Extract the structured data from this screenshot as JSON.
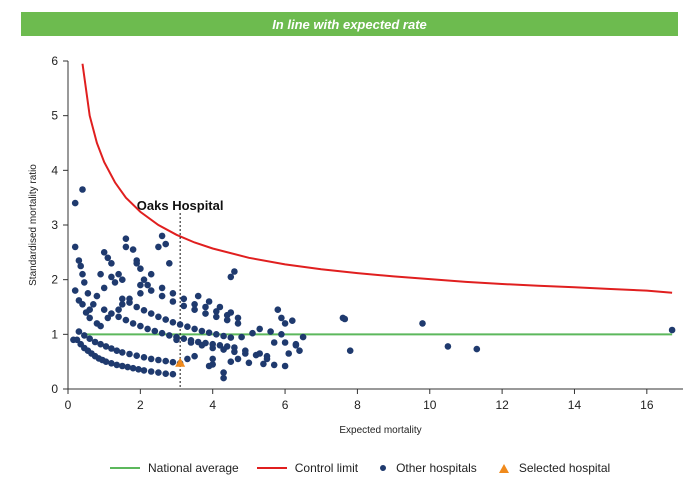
{
  "banner": {
    "text": "In line with expected rate",
    "color": "#6dbb4f"
  },
  "legend": {
    "national_average": "National average",
    "control_limit": "Control limit",
    "other_hospitals": "Other hospitals",
    "selected_hospital": "Selected hospital"
  },
  "colors": {
    "national": "#5cb85c",
    "control": "#e01f1f",
    "other": "#1f3a6e",
    "selected": "#f08a1c"
  },
  "chart_data": {
    "type": "scatter",
    "xlabel": "Expected mortality",
    "ylabel": "Standardised mortality ratio",
    "xlim": [
      0,
      17
    ],
    "ylim": [
      0,
      6
    ],
    "xticks": [
      0,
      2,
      4,
      6,
      8,
      10,
      12,
      14,
      16
    ],
    "yticks": [
      0,
      1,
      2,
      3,
      4,
      5,
      6
    ],
    "annotation": {
      "label": "Oaks Hospital",
      "x": 3.1
    },
    "national_average": {
      "x": [
        0.4,
        16.7
      ],
      "y": [
        1.0,
        1.0
      ]
    },
    "control_limit": {
      "x": [
        0.4,
        0.6,
        0.8,
        1.0,
        1.3,
        1.6,
        2.0,
        2.5,
        3.0,
        3.5,
        4.0,
        5.0,
        6.0,
        7.0,
        8.0,
        9.0,
        10.0,
        11.0,
        12.0,
        13.0,
        14.0,
        15.0,
        16.0,
        16.7
      ],
      "y": [
        5.95,
        5.0,
        4.5,
        4.15,
        3.78,
        3.5,
        3.24,
        3.0,
        2.82,
        2.68,
        2.57,
        2.4,
        2.28,
        2.19,
        2.12,
        2.06,
        2.01,
        1.96,
        1.92,
        1.89,
        1.86,
        1.83,
        1.8,
        1.76
      ]
    },
    "series": [
      {
        "name": "Other hospitals",
        "x": [
          0.2,
          0.4,
          0.2,
          0.3,
          0.35,
          0.4,
          0.45,
          0.55,
          0.3,
          0.2,
          0.4,
          0.5,
          0.6,
          0.8,
          0.15,
          1.0,
          1.1,
          1.2,
          0.9,
          1.5,
          1.4,
          1.6,
          1.8,
          1.9,
          1.3,
          1.2,
          1.0,
          0.8,
          0.7,
          0.6,
          1.6,
          1.9,
          2.0,
          2.1,
          2.3,
          2.5,
          2.6,
          2.7,
          2.8,
          2.2,
          2.0,
          1.7,
          1.5,
          1.4,
          1.1,
          0.9,
          0.25,
          0.35,
          0.45,
          0.55,
          0.65,
          0.75,
          0.85,
          0.95,
          1.05,
          1.2,
          1.35,
          1.5,
          1.65,
          1.8,
          1.95,
          2.1,
          2.3,
          2.5,
          2.7,
          2.9,
          0.3,
          0.45,
          0.6,
          0.75,
          0.9,
          1.05,
          1.2,
          1.35,
          1.5,
          1.7,
          1.9,
          2.1,
          2.3,
          2.5,
          2.7,
          2.9,
          3.1,
          1.0,
          1.2,
          1.4,
          1.6,
          1.8,
          2.0,
          2.2,
          2.4,
          2.6,
          2.8,
          3.0,
          3.2,
          3.4,
          3.6,
          3.8,
          4.0,
          4.2,
          4.4,
          4.6,
          1.5,
          1.7,
          1.9,
          2.1,
          2.3,
          2.5,
          2.7,
          2.9,
          3.1,
          3.3,
          3.5,
          3.7,
          3.9,
          4.1,
          4.3,
          4.5,
          2.0,
          2.3,
          2.6,
          2.9,
          3.2,
          3.5,
          3.8,
          4.1,
          4.4,
          4.7,
          2.6,
          2.9,
          3.2,
          3.5,
          3.8,
          4.1,
          4.4,
          4.7,
          3.0,
          3.4,
          3.7,
          4.0,
          4.3,
          4.6,
          4.9,
          5.2,
          5.5,
          3.5,
          4.0,
          4.5,
          5.0,
          5.4,
          5.7,
          6.0,
          6.3,
          6.5,
          3.6,
          3.9,
          4.2,
          4.5,
          4.8,
          3.3,
          3.9,
          4.3,
          4.0,
          4.6,
          5.3,
          5.6,
          5.8,
          5.9,
          6.0,
          6.2,
          6.4,
          5.5,
          5.7,
          6.1,
          6.3,
          5.1,
          5.3,
          4.9,
          4.7,
          4.3,
          4.5,
          5.9,
          6.0,
          7.6,
          7.65,
          7.8,
          9.8,
          10.5,
          11.3,
          16.7
        ],
        "y": [
          3.4,
          3.65,
          2.6,
          2.35,
          2.25,
          2.1,
          1.95,
          1.75,
          1.62,
          1.8,
          1.55,
          1.4,
          1.3,
          1.2,
          0.9,
          2.5,
          2.4,
          2.3,
          2.1,
          2.0,
          2.1,
          2.75,
          2.55,
          2.35,
          1.95,
          2.05,
          1.85,
          1.7,
          1.55,
          1.45,
          2.6,
          2.3,
          2.2,
          2.0,
          2.1,
          2.6,
          2.8,
          2.65,
          2.3,
          1.9,
          1.75,
          1.65,
          1.55,
          1.45,
          1.3,
          1.15,
          0.9,
          0.82,
          0.75,
          0.7,
          0.65,
          0.6,
          0.56,
          0.53,
          0.5,
          0.47,
          0.44,
          0.42,
          0.4,
          0.38,
          0.36,
          0.34,
          0.32,
          0.3,
          0.28,
          0.27,
          1.05,
          0.98,
          0.92,
          0.86,
          0.82,
          0.78,
          0.74,
          0.7,
          0.67,
          0.64,
          0.61,
          0.58,
          0.55,
          0.53,
          0.51,
          0.49,
          0.47,
          1.45,
          1.38,
          1.32,
          1.26,
          1.2,
          1.15,
          1.1,
          1.06,
          1.02,
          0.98,
          0.95,
          0.92,
          0.89,
          0.86,
          0.84,
          0.82,
          0.8,
          0.78,
          0.76,
          1.65,
          1.58,
          1.5,
          1.44,
          1.38,
          1.32,
          1.27,
          1.22,
          1.18,
          1.14,
          1.1,
          1.06,
          1.03,
          1.0,
          0.97,
          0.94,
          1.9,
          1.8,
          1.7,
          1.6,
          1.52,
          1.45,
          1.38,
          1.32,
          1.26,
          1.2,
          1.85,
          1.75,
          1.65,
          1.55,
          1.5,
          1.42,
          1.35,
          1.3,
          0.9,
          0.85,
          0.8,
          0.75,
          0.72,
          0.68,
          0.65,
          0.62,
          0.6,
          0.6,
          0.55,
          0.5,
          0.48,
          0.46,
          0.44,
          0.42,
          0.8,
          0.95,
          1.7,
          1.6,
          1.5,
          1.4,
          0.95,
          0.55,
          0.42,
          0.2,
          0.45,
          2.15,
          1.1,
          1.05,
          1.45,
          1.3,
          1.2,
          1.25,
          0.7,
          0.55,
          0.85,
          0.65,
          0.82,
          1.02,
          0.65,
          0.7,
          0.55,
          0.3,
          2.05,
          1.0,
          0.85,
          1.3,
          1.28,
          0.7,
          1.2,
          0.78,
          0.73,
          1.08
        ]
      },
      {
        "name": "Selected hospital",
        "x": [
          3.1
        ],
        "y": [
          0.48
        ]
      }
    ]
  }
}
